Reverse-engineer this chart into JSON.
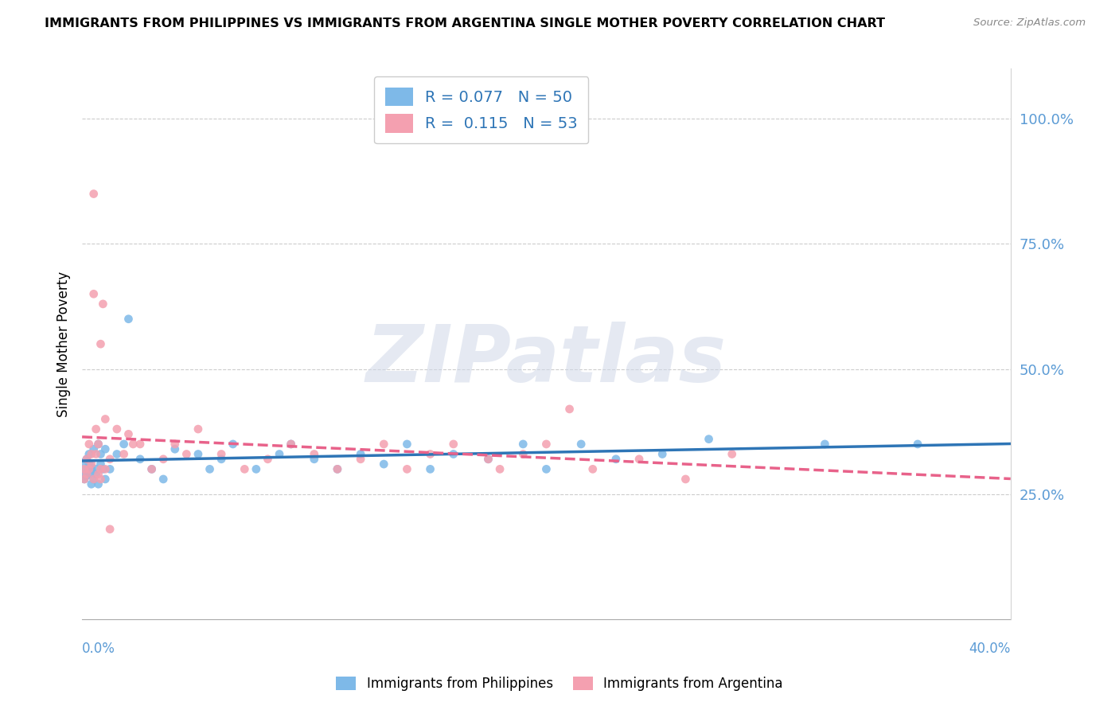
{
  "title": "IMMIGRANTS FROM PHILIPPINES VS IMMIGRANTS FROM ARGENTINA SINGLE MOTHER POVERTY CORRELATION CHART",
  "source": "Source: ZipAtlas.com",
  "ylabel": "Single Mother Poverty",
  "y_ticks": [
    0.25,
    0.5,
    0.75,
    1.0
  ],
  "y_tick_labels": [
    "25.0%",
    "50.0%",
    "75.0%",
    "100.0%"
  ],
  "x_lim": [
    0.0,
    0.4
  ],
  "y_lim": [
    0.0,
    1.1
  ],
  "philippines_color": "#7EB9E8",
  "argentina_color": "#F4A0B0",
  "philippines_line_color": "#2E75B6",
  "argentina_line_color": "#E8628A",
  "philippines_R": 0.077,
  "philippines_N": 50,
  "argentina_R": 0.115,
  "argentina_N": 53,
  "watermark": "ZIPatlas",
  "legend_label_1": "Immigrants from Philippines",
  "legend_label_2": "Immigrants from Argentina",
  "philippines_x": [
    0.001,
    0.001,
    0.002,
    0.002,
    0.003,
    0.003,
    0.004,
    0.004,
    0.005,
    0.005,
    0.006,
    0.006,
    0.007,
    0.007,
    0.008,
    0.008,
    0.009,
    0.01,
    0.01,
    0.012,
    0.015,
    0.018,
    0.02,
    0.025,
    0.03,
    0.035,
    0.04,
    0.05,
    0.055,
    0.06,
    0.065,
    0.075,
    0.085,
    0.09,
    0.1,
    0.11,
    0.12,
    0.13,
    0.14,
    0.15,
    0.16,
    0.175,
    0.19,
    0.2,
    0.215,
    0.23,
    0.25,
    0.27,
    0.32,
    0.36
  ],
  "philippines_y": [
    0.3,
    0.28,
    0.32,
    0.29,
    0.33,
    0.31,
    0.27,
    0.3,
    0.34,
    0.28,
    0.3,
    0.29,
    0.35,
    0.27,
    0.31,
    0.33,
    0.3,
    0.28,
    0.34,
    0.3,
    0.33,
    0.35,
    0.6,
    0.32,
    0.3,
    0.28,
    0.34,
    0.33,
    0.3,
    0.32,
    0.35,
    0.3,
    0.33,
    0.35,
    0.32,
    0.3,
    0.33,
    0.31,
    0.35,
    0.3,
    0.33,
    0.32,
    0.35,
    0.3,
    0.35,
    0.32,
    0.33,
    0.36,
    0.35,
    0.35
  ],
  "philippines_sizes": [
    400,
    60,
    60,
    60,
    60,
    60,
    60,
    60,
    60,
    60,
    60,
    60,
    60,
    60,
    60,
    60,
    60,
    60,
    60,
    60,
    60,
    60,
    60,
    60,
    60,
    60,
    60,
    60,
    60,
    60,
    60,
    60,
    60,
    60,
    60,
    60,
    60,
    60,
    60,
    60,
    60,
    60,
    60,
    60,
    60,
    60,
    60,
    60,
    60,
    60
  ],
  "argentina_x": [
    0.001,
    0.001,
    0.002,
    0.002,
    0.003,
    0.003,
    0.004,
    0.004,
    0.005,
    0.005,
    0.006,
    0.006,
    0.007,
    0.007,
    0.008,
    0.008,
    0.009,
    0.01,
    0.01,
    0.012,
    0.015,
    0.018,
    0.02,
    0.022,
    0.025,
    0.03,
    0.035,
    0.04,
    0.045,
    0.05,
    0.06,
    0.07,
    0.08,
    0.09,
    0.1,
    0.11,
    0.12,
    0.13,
    0.14,
    0.15,
    0.16,
    0.175,
    0.18,
    0.19,
    0.2,
    0.21,
    0.22,
    0.24,
    0.26,
    0.28,
    0.005,
    0.008,
    0.012
  ],
  "argentina_y": [
    0.3,
    0.28,
    0.32,
    0.29,
    0.35,
    0.3,
    0.33,
    0.31,
    0.28,
    0.65,
    0.38,
    0.33,
    0.29,
    0.35,
    0.3,
    0.28,
    0.63,
    0.4,
    0.3,
    0.32,
    0.38,
    0.33,
    0.37,
    0.35,
    0.35,
    0.3,
    0.32,
    0.35,
    0.33,
    0.38,
    0.33,
    0.3,
    0.32,
    0.35,
    0.33,
    0.3,
    0.32,
    0.35,
    0.3,
    0.33,
    0.35,
    0.32,
    0.3,
    0.33,
    0.35,
    0.42,
    0.3,
    0.32,
    0.28,
    0.33,
    0.85,
    0.55,
    0.18
  ]
}
